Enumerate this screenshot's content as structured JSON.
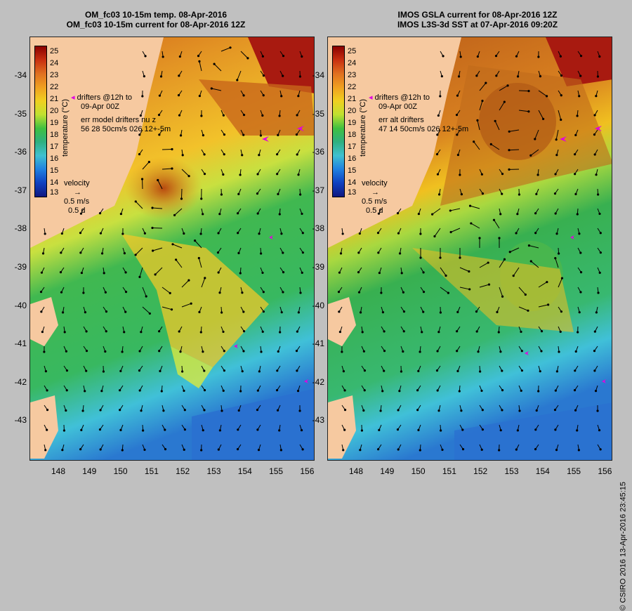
{
  "left": {
    "title_line1": "OM_fc03 10-15m temp. 08-Apr-2016",
    "title_line2": "OM_fc03 10-15m current for 08-Apr-2016 12Z",
    "drifters_line1": "drifters @12h to",
    "drifters_line2": "09-Apr 00Z",
    "err_line1": "err model drifters nu z",
    "err_line2": "56 28 50cm/s 026 12+-5m"
  },
  "right": {
    "title_line1": "IMOS GSLA current for 08-Apr-2016 12Z",
    "title_line2": "IMOS L3S-3d SST at 07-Apr-2016 09:20Z",
    "drifters_line1": "drifters @12h to",
    "drifters_line2": "09-Apr 00Z",
    "err_line1": "err alt drifters",
    "err_line2": "47 14 50cm/s 026 12+-5m"
  },
  "velocity": {
    "label": "velocity",
    "speed": "0.5 m/s",
    "duration": "0.5 d"
  },
  "colorbar": {
    "unit": "temperature (°C)",
    "ticks": [
      "25",
      "24",
      "23",
      "22",
      "21",
      "20",
      "19",
      "18",
      "17",
      "16",
      "15",
      "14",
      "13"
    ]
  },
  "y_ticks": [
    "-34",
    "-35",
    "-36",
    "-37",
    "-38",
    "-39",
    "-40",
    "-41",
    "-42",
    "-43"
  ],
  "x_ticks": [
    "148",
    "149",
    "150",
    "151",
    "152",
    "153",
    "154",
    "155",
    "156"
  ],
  "credit": "© CSIRO 2016  13-Apr-2016 23:45:15",
  "colors": {
    "land": "#f6c9a0",
    "warm": "#c84a10",
    "orange": "#e08a1a",
    "yellow": "#f0c020",
    "green": "#30b040",
    "cyan": "#40c0d8",
    "blue": "#2060c0",
    "drifter": "#e000e0"
  }
}
